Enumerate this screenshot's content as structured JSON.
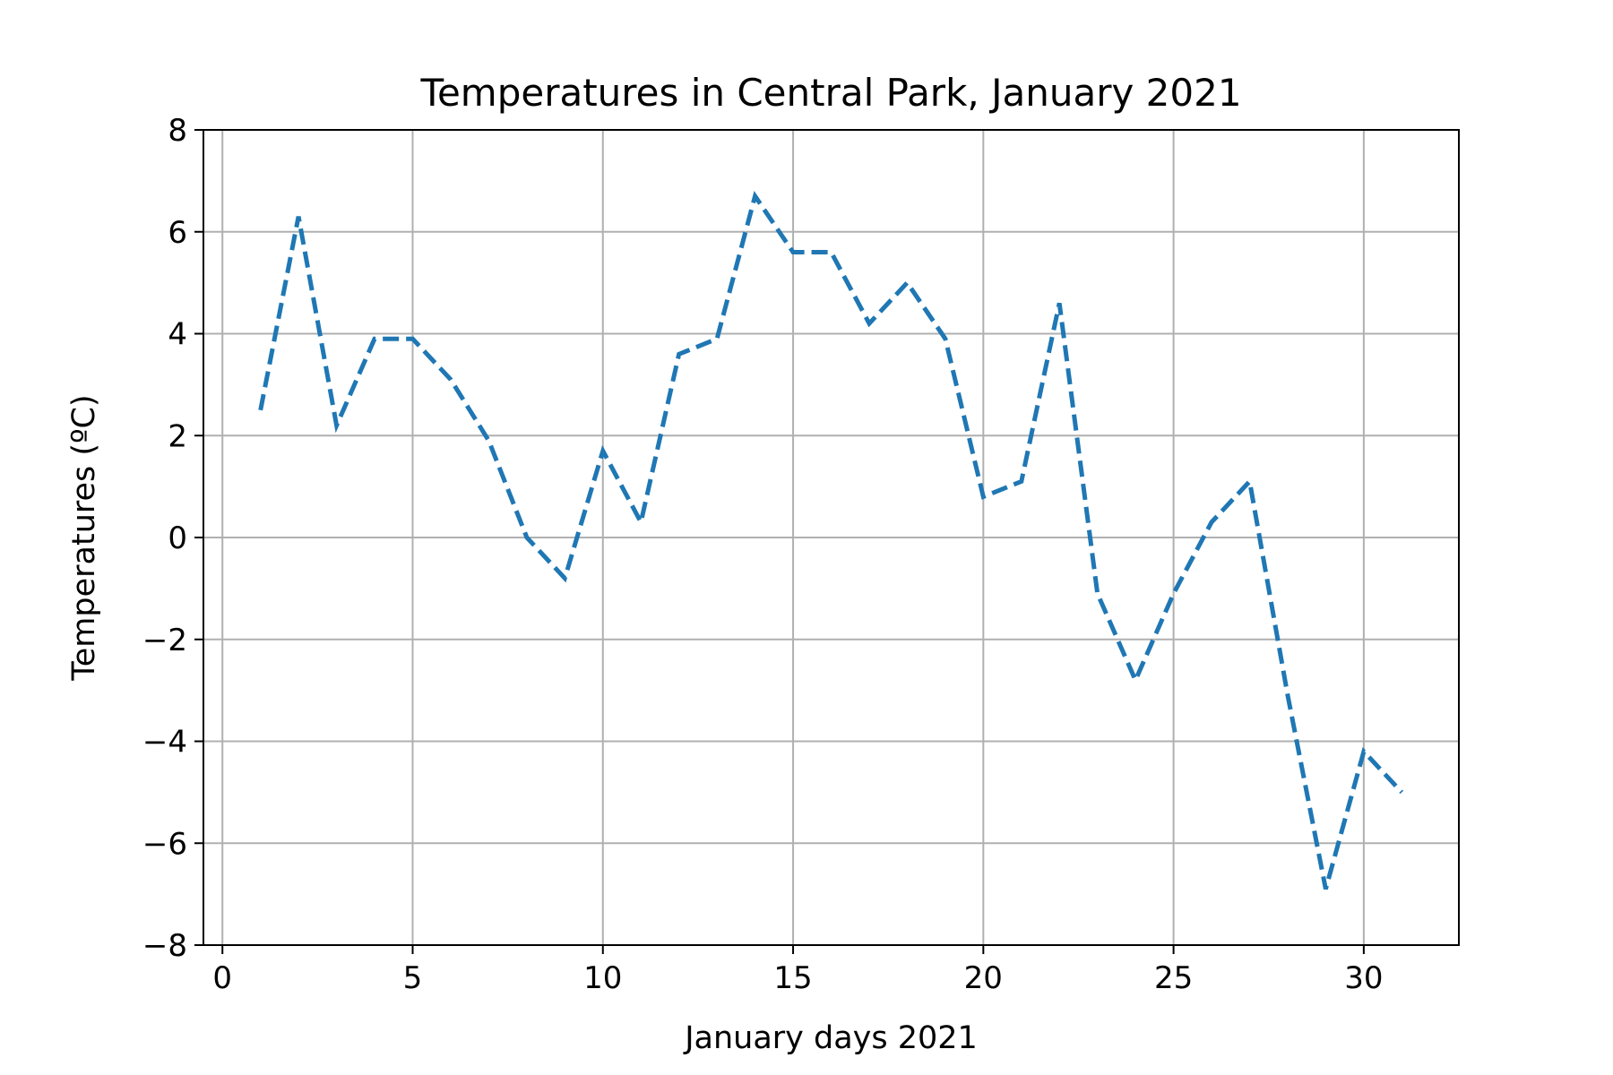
{
  "chart_data": {
    "type": "line",
    "title": "Temperatures in Central Park, January 2021",
    "xlabel": "January days 2021",
    "ylabel": "Temperatures (ºC)",
    "xlim": [
      -0.5,
      32.5
    ],
    "ylim": [
      -8,
      8
    ],
    "x_ticks": [
      0,
      5,
      10,
      15,
      20,
      25,
      30
    ],
    "y_ticks": [
      -8,
      -6,
      -4,
      -2,
      0,
      2,
      4,
      6,
      8
    ],
    "y_tick_labels": [
      "−8",
      "−6",
      "−4",
      "−2",
      "0",
      "2",
      "4",
      "6",
      "8"
    ],
    "grid": true,
    "line_style": "dashed",
    "line_color": "#1f77b4",
    "series": [
      {
        "x": [
          1,
          2,
          3,
          4,
          5,
          6,
          7,
          8,
          9,
          10,
          11,
          12,
          13,
          14,
          15,
          16,
          17,
          18,
          19,
          20,
          21,
          22,
          23,
          24,
          25,
          26,
          27,
          28,
          29,
          30,
          31
        ],
        "values": [
          2.5,
          6.3,
          2.2,
          3.9,
          3.9,
          3.1,
          1.9,
          0.0,
          -0.8,
          1.7,
          0.3,
          3.6,
          3.9,
          6.7,
          5.6,
          5.6,
          4.2,
          5.0,
          3.9,
          0.8,
          1.1,
          4.6,
          -1.1,
          -2.8,
          -1.1,
          0.3,
          1.1,
          -3.1,
          -6.9,
          -4.2,
          -5.0
        ]
      }
    ]
  }
}
